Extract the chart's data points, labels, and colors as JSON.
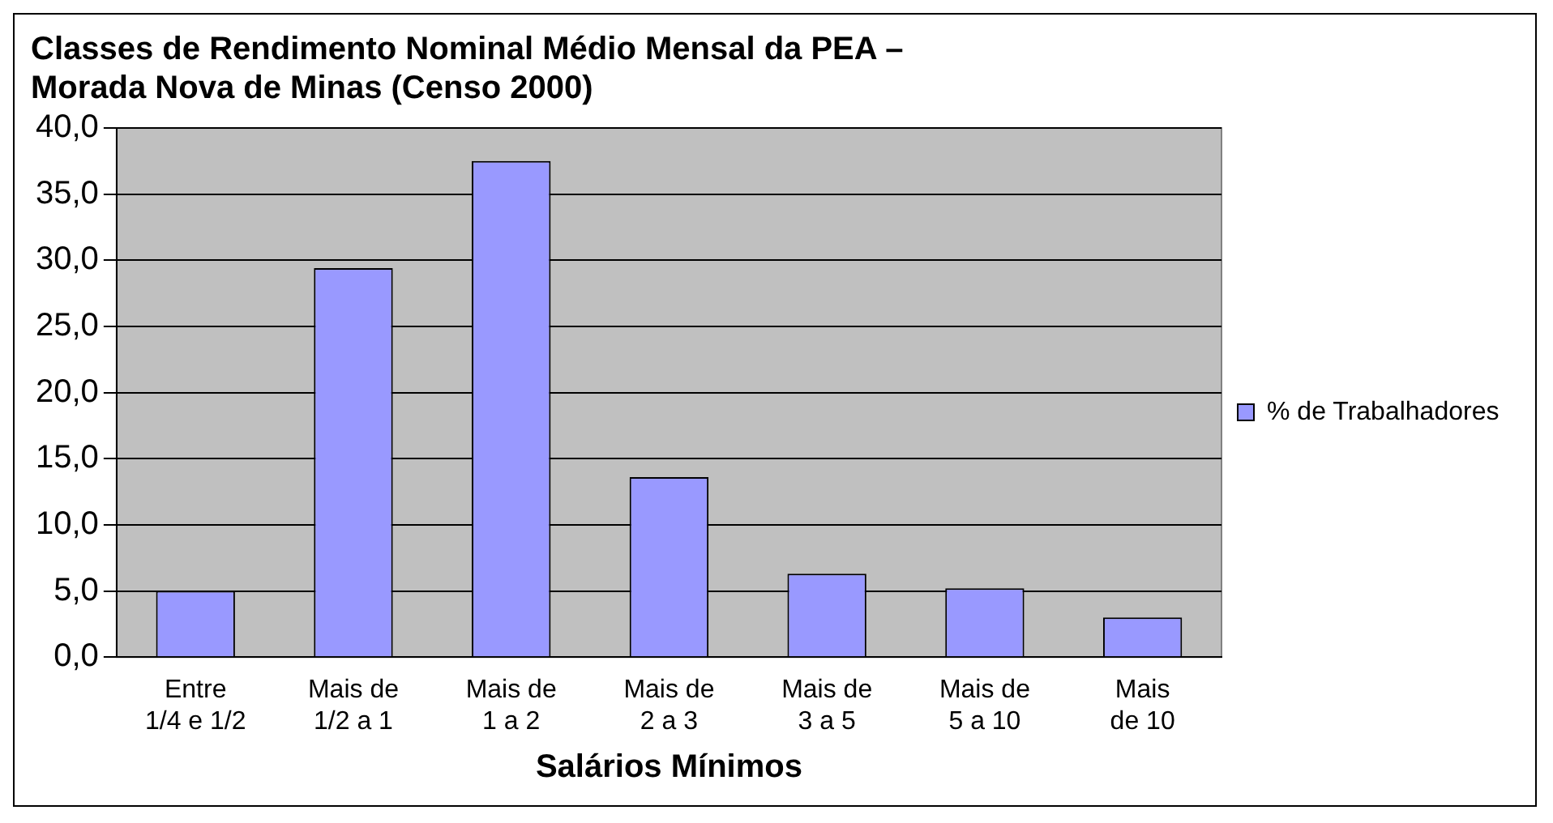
{
  "chart_data": {
    "type": "bar",
    "title": "Classes de Rendimento Nominal Médio Mensal da PEA – Morada Nova de Minas (Censo 2000)",
    "xlabel": "Salários Mínimos",
    "categories": [
      "Entre 1/4 e 1/2",
      "Mais de 1/2 a 1",
      "Mais de 1 a 2",
      "Mais de 2 a 3",
      "Mais de 3 a 5",
      "Mais de 5 a 10",
      "Mais de 10"
    ],
    "series": [
      {
        "name": "% de Trabalhadores",
        "color": "#9999ff",
        "values": [
          5.0,
          29.4,
          37.5,
          13.6,
          6.3,
          5.2,
          3.0
        ]
      }
    ],
    "ylim": [
      0,
      40
    ],
    "yticks": [
      {
        "value": 0,
        "label": "0,0"
      },
      {
        "value": 5,
        "label": "5,0"
      },
      {
        "value": 10,
        "label": "10,0"
      },
      {
        "value": 15,
        "label": "15,0"
      },
      {
        "value": 20,
        "label": "20,0"
      },
      {
        "value": 25,
        "label": "25,0"
      },
      {
        "value": 30,
        "label": "30,0"
      },
      {
        "value": 35,
        "label": "35,0"
      },
      {
        "value": 40,
        "label": "40,0"
      }
    ],
    "grid": "y",
    "legend": "right"
  }
}
